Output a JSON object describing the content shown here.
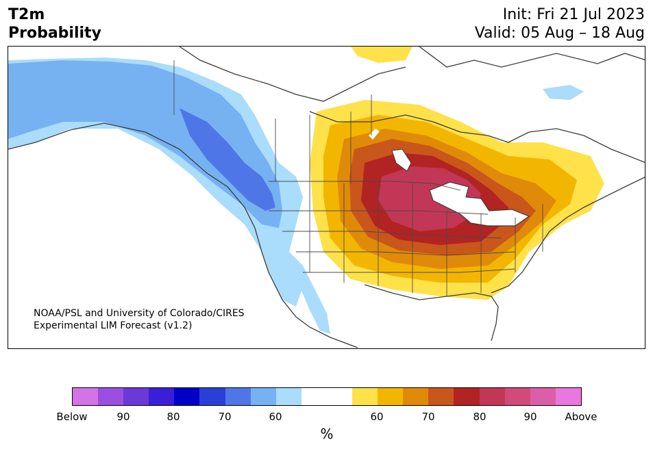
{
  "header": {
    "title_line1": "T2m",
    "title_line2": "Probability",
    "init_label": "Init: Fri 21 Jul 2023",
    "valid_label": "Valid: 05 Aug – 18 Aug"
  },
  "credit": {
    "line1": "NOAA/PSL and University of Colorado/CIRES",
    "line2": "Experimental LIM Forecast (v1.2)"
  },
  "colorbar": {
    "unit": "%",
    "colors": [
      "#d473e8",
      "#9b4fe0",
      "#6a3ad8",
      "#3a1fd6",
      "#0000c8",
      "#2a3fd8",
      "#4f76e6",
      "#76b2f2",
      "#aadcfb",
      "#ffffff",
      "#ffffff",
      "#ffe14a",
      "#f3b600",
      "#e08a0a",
      "#c9561a",
      "#b22323",
      "#c23755",
      "#d24a7a",
      "#dc5ea8",
      "#ea77dd"
    ],
    "ticks": [
      "Below",
      "90",
      "80",
      "70",
      "60",
      "60",
      "70",
      "80",
      "90",
      "Above"
    ]
  },
  "map": {
    "regions": [
      {
        "name": "alaska-below-normal",
        "category": "below 60-70%",
        "color": "#76b2f2"
      },
      {
        "name": "pacific-northwest-below-normal",
        "category": "below 70-80%",
        "color": "#4f76e6"
      },
      {
        "name": "central-us-above-normal",
        "category": "above 70-80%",
        "color": "#b22323"
      },
      {
        "name": "upper-midwest-above-normal",
        "category": "above 80-90%",
        "color": "#c23755"
      }
    ]
  }
}
